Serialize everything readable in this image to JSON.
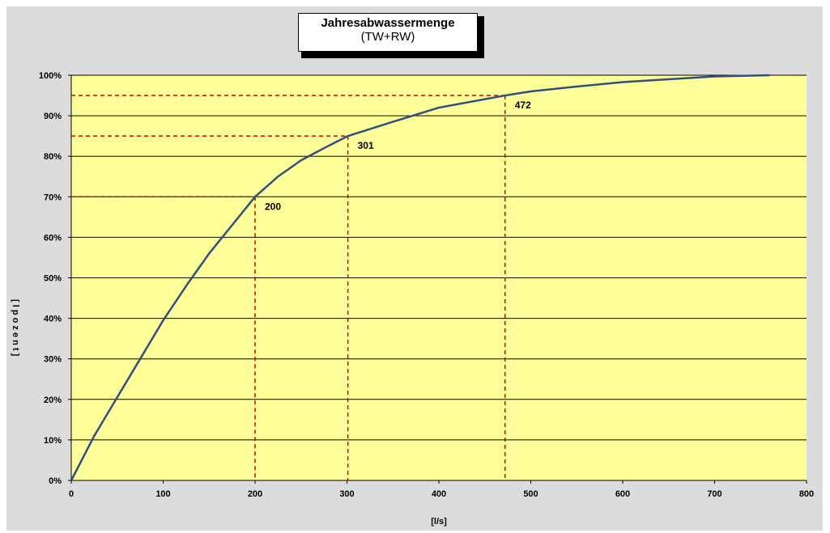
{
  "colors": {
    "plot_background": "#ffff99",
    "frame_background": "#dcdcdc",
    "curve": "#2f4f7f",
    "reference_lines": "#cc0000",
    "grid": "#000000"
  },
  "chart_data": {
    "type": "line",
    "title": "Jahresabwassermenge",
    "subtitle": "(TW+RW)",
    "xlabel": "[l/s]",
    "ylabel": "[ l p o z e n t ]",
    "xlim": [
      0,
      800
    ],
    "ylim": [
      0,
      100
    ],
    "x_ticks": [
      "0",
      "100",
      "200",
      "300",
      "400",
      "500",
      "600",
      "700",
      "800"
    ],
    "y_ticks": [
      "0%",
      "10%",
      "20%",
      "30%",
      "40%",
      "50%",
      "60%",
      "70%",
      "80%",
      "90%",
      "100%"
    ],
    "grid": "horizontal",
    "series": [
      {
        "x": [
          0,
          25,
          50,
          75,
          100,
          125,
          150,
          175,
          200,
          225,
          250,
          275,
          301,
          350,
          400,
          472,
          500,
          550,
          600,
          650,
          700,
          760
        ],
        "y": [
          0,
          11,
          20.5,
          30,
          39.5,
          48,
          56,
          63,
          70,
          75,
          79,
          82,
          85,
          88.5,
          92,
          95,
          96,
          97.2,
          98.3,
          99,
          99.7,
          100
        ]
      }
    ],
    "annotations": [
      {
        "x": 200,
        "y": 70,
        "label": "200"
      },
      {
        "x": 301,
        "y": 85,
        "label": "301"
      },
      {
        "x": 472,
        "y": 95,
        "label": "472"
      }
    ]
  }
}
